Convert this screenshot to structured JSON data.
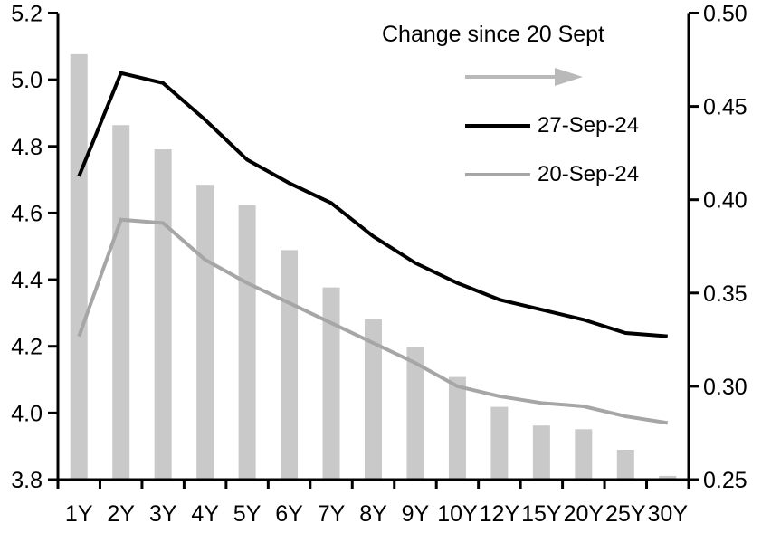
{
  "chart_data": {
    "type": "combo-bar-line",
    "categories": [
      "1Y",
      "2Y",
      "3Y",
      "4Y",
      "5Y",
      "6Y",
      "7Y",
      "8Y",
      "9Y",
      "10Y",
      "12Y",
      "15Y",
      "20Y",
      "25Y",
      "30Y"
    ],
    "series": [
      {
        "name": "Change since 20 Sept",
        "type": "bar",
        "axis": "right",
        "color": "#c9c9c9",
        "values": [
          0.478,
          0.44,
          0.427,
          0.408,
          0.397,
          0.373,
          0.353,
          0.336,
          0.321,
          0.305,
          0.289,
          0.279,
          0.277,
          0.266,
          0.252
        ]
      },
      {
        "name": "27-Sep-24",
        "type": "line",
        "axis": "left",
        "color": "#000000",
        "values": [
          4.71,
          5.02,
          4.99,
          4.88,
          4.76,
          4.69,
          4.63,
          4.53,
          4.45,
          4.39,
          4.34,
          4.31,
          4.28,
          4.24,
          4.23
        ]
      },
      {
        "name": "20-Sep-24",
        "type": "line",
        "axis": "left",
        "color": "#a6a6a6",
        "values": [
          4.23,
          4.58,
          4.57,
          4.46,
          4.39,
          4.33,
          4.27,
          4.21,
          4.15,
          4.08,
          4.05,
          4.03,
          4.02,
          3.99,
          3.97
        ]
      }
    ],
    "left_axis": {
      "min": 3.8,
      "max": 5.2,
      "ticks": [
        3.8,
        4.0,
        4.2,
        4.4,
        4.6,
        4.8,
        5.0,
        5.2
      ],
      "tick_labels": [
        "3.8",
        "4.0",
        "4.2",
        "4.4",
        "4.6",
        "4.8",
        "5.0",
        "5.2"
      ]
    },
    "right_axis": {
      "min": 0.25,
      "max": 0.5,
      "ticks": [
        0.25,
        0.3,
        0.35,
        0.4,
        0.45,
        0.5
      ],
      "tick_labels": [
        "0.25",
        "0.30",
        "0.35",
        "0.40",
        "0.45",
        "0.50"
      ]
    },
    "grid": false,
    "legend_position": "top-inside",
    "legend": {
      "title": "Change since 20 Sept",
      "arrow_icon": "right-arrow",
      "arrow_color": "#b9b9b9",
      "line1_label": "27-Sep-24",
      "line2_label": "20-Sep-24"
    },
    "title": "",
    "xlabel": "",
    "ylabel": ""
  },
  "colors": {
    "axis": "#000000",
    "bar": "#c9c9c9",
    "line_27sep": "#000000",
    "line_20sep": "#a6a6a6",
    "arrow": "#b9b9b9",
    "text": "#000000"
  }
}
